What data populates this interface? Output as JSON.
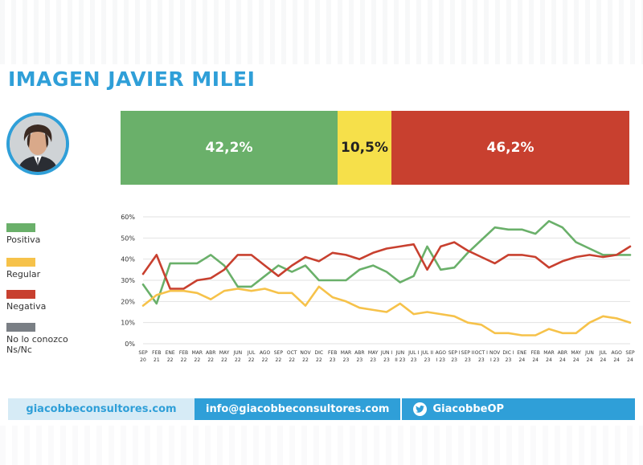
{
  "header": {
    "title": "IMAGEN JAVIER MILEI"
  },
  "summary_bar": {
    "positiva": {
      "label": "42,2%",
      "value": 42.2,
      "color": "#6ab06a"
    },
    "regular": {
      "label": "10,5%",
      "value": 10.5,
      "color": "#f6e04a"
    },
    "negativa": {
      "label": "46,2%",
      "value": 46.2,
      "color": "#c8402f"
    }
  },
  "legend": [
    {
      "label": "Positiva",
      "color": "#6ab06a"
    },
    {
      "label": "Regular",
      "color": "#f6c24a"
    },
    {
      "label": "Negativa",
      "color": "#c8402f"
    },
    {
      "label": "No lo conozco\nNs/Nc",
      "color": "#7a7f85"
    }
  ],
  "chart_data": {
    "type": "line",
    "title": "",
    "xlabel": "",
    "ylabel": "",
    "ylim": [
      0,
      60
    ],
    "yticks": [
      "0%",
      "10%",
      "20%",
      "30%",
      "40%",
      "50%",
      "60%"
    ],
    "grid": true,
    "categories": [
      [
        "SEP",
        "20"
      ],
      [
        "FEB",
        "21"
      ],
      [
        "ENE",
        "22"
      ],
      [
        "FEB",
        "22"
      ],
      [
        "MAR",
        "22"
      ],
      [
        "ABR",
        "22"
      ],
      [
        "MAY",
        "22"
      ],
      [
        "JUN",
        "22"
      ],
      [
        "JUL",
        "22"
      ],
      [
        "AGO",
        "22"
      ],
      [
        "SEP",
        "22"
      ],
      [
        "OCT",
        "22"
      ],
      [
        "NOV",
        "22"
      ],
      [
        "DIC",
        "22"
      ],
      [
        "FEB",
        "23"
      ],
      [
        "MAR",
        "23"
      ],
      [
        "ABR",
        "23"
      ],
      [
        "MAY",
        "23"
      ],
      [
        "JUN I",
        "23"
      ],
      [
        "JUN",
        "II 23"
      ],
      [
        "JUL I",
        "23"
      ],
      [
        "JUL II",
        "23"
      ],
      [
        "AGO",
        "I 23"
      ],
      [
        "SEP I",
        "23"
      ],
      [
        "SEP II",
        "23"
      ],
      [
        "OCT I",
        "23"
      ],
      [
        "NOV",
        "I 23"
      ],
      [
        "DIC I",
        "23"
      ],
      [
        "ENE",
        "24"
      ],
      [
        "FEB",
        "24"
      ],
      [
        "MAR",
        "24"
      ],
      [
        "ABR",
        "24"
      ],
      [
        "MAY",
        "24"
      ],
      [
        "JUN",
        "24"
      ],
      [
        "JUL",
        "24"
      ],
      [
        "AGO",
        "24"
      ],
      [
        "SEP",
        "24"
      ]
    ],
    "series": [
      {
        "name": "Positiva",
        "color": "#6ab06a",
        "values": [
          28,
          19,
          38,
          38,
          38,
          42,
          37,
          27,
          27,
          32,
          37,
          34,
          37,
          30,
          30,
          30,
          35,
          37,
          34,
          29,
          32,
          46,
          35,
          36,
          43,
          49,
          55,
          54,
          54,
          52,
          58,
          55,
          48,
          45,
          42,
          42,
          42
        ]
      },
      {
        "name": "Regular",
        "color": "#f6c24a",
        "values": [
          18,
          23,
          25,
          25,
          24,
          21,
          25,
          26,
          25,
          26,
          24,
          24,
          18,
          27,
          22,
          20,
          17,
          16,
          15,
          19,
          14,
          15,
          14,
          13,
          10,
          9,
          5,
          5,
          4,
          4,
          7,
          5,
          5,
          10,
          13,
          12,
          10
        ]
      },
      {
        "name": "Negativa",
        "color": "#c8402f",
        "values": [
          33,
          42,
          26,
          26,
          30,
          31,
          35,
          42,
          42,
          37,
          32,
          37,
          41,
          39,
          43,
          42,
          40,
          43,
          45,
          46,
          47,
          35,
          46,
          48,
          44,
          41,
          38,
          42,
          42,
          41,
          36,
          39,
          41,
          42,
          41,
          42,
          46
        ]
      }
    ]
  },
  "footer": {
    "website": "giacobbeconsultores.com",
    "email": "info@giacobbeconsultores.com",
    "twitter": "GiacobbeOP"
  }
}
